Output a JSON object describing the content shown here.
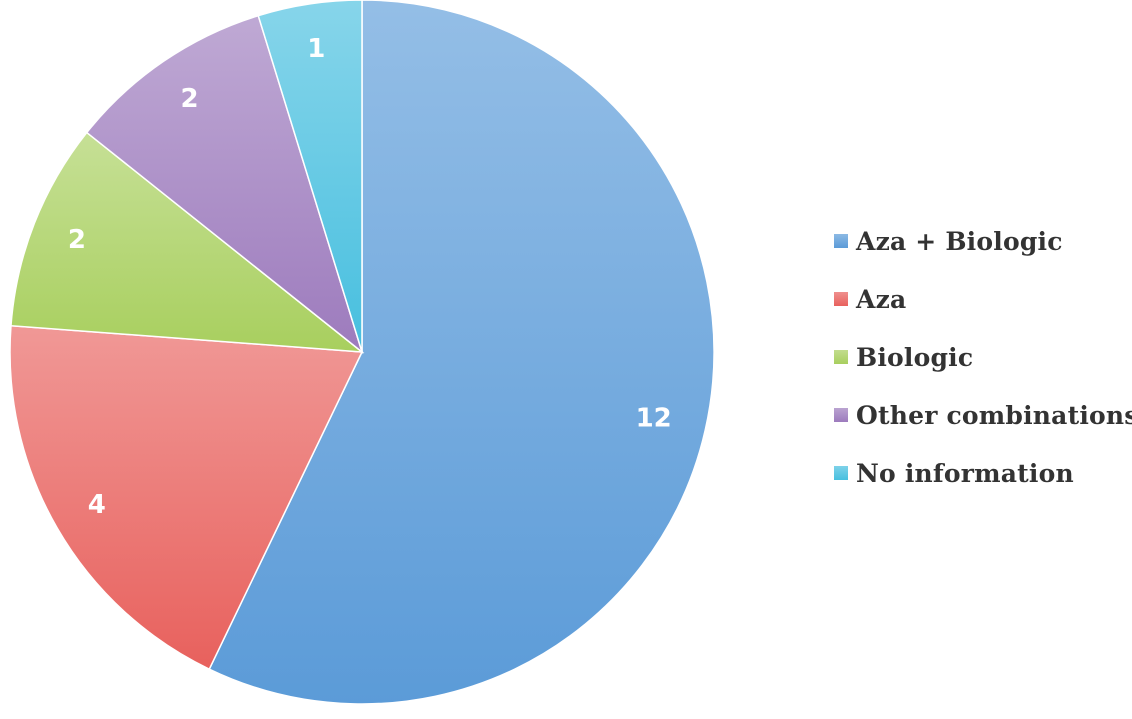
{
  "chart_data": {
    "type": "pie",
    "title": "",
    "categories": [
      "Aza + Biologic",
      "Aza",
      "Biologic",
      "Other combinations",
      "No information"
    ],
    "values": [
      12,
      4,
      2,
      2,
      1
    ],
    "data_labels": [
      "12",
      "4",
      "2",
      "2",
      "1"
    ],
    "colors": [
      "#5b9bd8",
      "#e8615d",
      "#a8cf5e",
      "#9d7bbd",
      "#47bfdf"
    ],
    "start_angle": "12 o'clock",
    "direction": "clockwise",
    "legend_placement": "right"
  }
}
